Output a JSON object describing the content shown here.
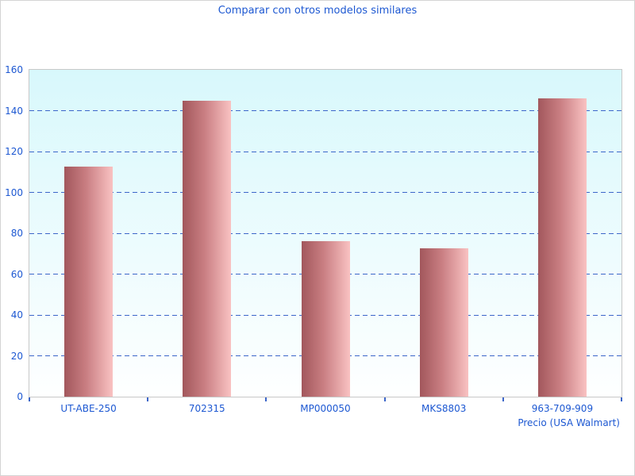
{
  "chart_data": {
    "type": "bar",
    "title": "Comparar con otros modelos similares",
    "categories": [
      "UT-ABE-250",
      "702315",
      "MP000050",
      "MKS8803",
      "963-709-909"
    ],
    "values": [
      112.5,
      145,
      76,
      72.5,
      146
    ],
    "xlabel": "Precio (USA Walmart)",
    "ylabel": "",
    "ylim": [
      0,
      160
    ],
    "ytick_step": 20,
    "grid": "horizontal-dashed",
    "legend": "none",
    "colors": {
      "text_blue": "#1d58d2",
      "gridline_blue": "#3c66c9",
      "bar_gradient_dark": "#a2575c",
      "bar_gradient_mid": "#c97e82",
      "bar_gradient_light": "#f9c2c2",
      "plot_bg_top": "#d8f8fc",
      "plot_bg_bottom": "#feffff",
      "plot_border": "#c8c8c8",
      "canvas_border": "#d4d4d4"
    }
  }
}
